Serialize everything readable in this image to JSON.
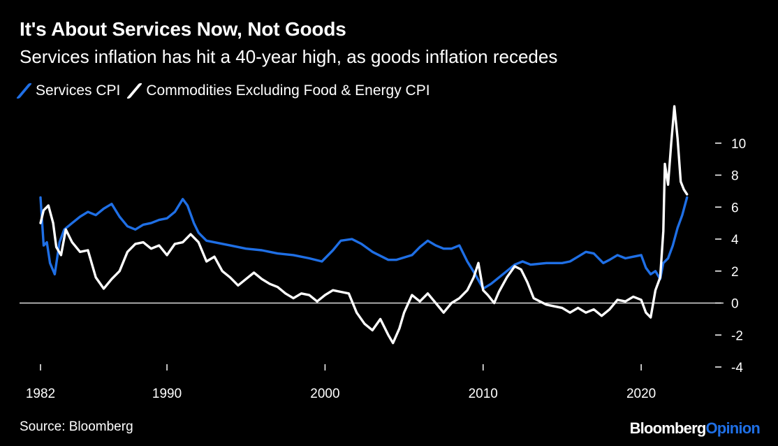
{
  "title": "It's About Services Now, Not Goods",
  "subtitle": "Services inflation has hit a 40-year high, as goods inflation recedes",
  "legend": [
    {
      "label": "Services CPI",
      "color": "#1f6fe5"
    },
    {
      "label": "Commodities Excluding Food & Energy CPI",
      "color": "#ffffff"
    }
  ],
  "source": "Source: Bloomberg",
  "brand": {
    "part1": "Bloomberg",
    "part2": "Opinion"
  },
  "chart_data": {
    "type": "line",
    "title": "It's About Services Now, Not Goods",
    "subtitle": "Services inflation has hit a 40-year high, as goods inflation recedes",
    "xlabel": "",
    "ylabel": "",
    "xlim": [
      1982,
      2023
    ],
    "ylim": [
      -4,
      12
    ],
    "x_ticks": [
      "1982",
      "1990",
      "2000",
      "2010",
      "2020"
    ],
    "x_tick_values": [
      1982,
      1990,
      2000,
      2010,
      2020
    ],
    "y_ticks": [
      "10",
      "8",
      "6",
      "4",
      "2",
      "0",
      "-2",
      "-4"
    ],
    "y_tick_values": [
      10,
      8,
      6,
      4,
      2,
      0,
      -2,
      -4
    ],
    "y_axis_side": "right",
    "zero_line": true,
    "legend_position": "top-left",
    "series": [
      {
        "name": "Services CPI",
        "color": "#1f6fe5",
        "points": [
          [
            1982.0,
            6.6
          ],
          [
            1982.2,
            3.6
          ],
          [
            1982.4,
            3.8
          ],
          [
            1982.6,
            2.5
          ],
          [
            1982.9,
            1.8
          ],
          [
            1983.2,
            3.8
          ],
          [
            1983.5,
            4.6
          ],
          [
            1984.0,
            5.0
          ],
          [
            1984.5,
            5.4
          ],
          [
            1985.0,
            5.7
          ],
          [
            1985.5,
            5.5
          ],
          [
            1986.0,
            5.9
          ],
          [
            1986.5,
            6.2
          ],
          [
            1987.0,
            5.4
          ],
          [
            1987.5,
            4.8
          ],
          [
            1988.0,
            4.6
          ],
          [
            1988.5,
            4.9
          ],
          [
            1989.0,
            5.0
          ],
          [
            1989.5,
            5.2
          ],
          [
            1990.0,
            5.3
          ],
          [
            1990.5,
            5.7
          ],
          [
            1991.0,
            6.5
          ],
          [
            1991.3,
            6.1
          ],
          [
            1991.7,
            5.0
          ],
          [
            1992.0,
            4.4
          ],
          [
            1992.5,
            3.9
          ],
          [
            1993.0,
            3.8
          ],
          [
            1994.0,
            3.6
          ],
          [
            1995.0,
            3.4
          ],
          [
            1996.0,
            3.3
          ],
          [
            1997.0,
            3.1
          ],
          [
            1998.0,
            3.0
          ],
          [
            1999.0,
            2.8
          ],
          [
            1999.8,
            2.6
          ],
          [
            2000.5,
            3.3
          ],
          [
            2001.0,
            3.9
          ],
          [
            2001.7,
            4.0
          ],
          [
            2002.3,
            3.7
          ],
          [
            2003.0,
            3.2
          ],
          [
            2004.0,
            2.7
          ],
          [
            2004.5,
            2.7
          ],
          [
            2005.5,
            3.0
          ],
          [
            2006.0,
            3.5
          ],
          [
            2006.5,
            3.9
          ],
          [
            2007.0,
            3.6
          ],
          [
            2007.5,
            3.4
          ],
          [
            2008.0,
            3.4
          ],
          [
            2008.5,
            3.6
          ],
          [
            2009.0,
            2.6
          ],
          [
            2009.5,
            1.8
          ],
          [
            2010.0,
            0.9
          ],
          [
            2010.5,
            1.2
          ],
          [
            2011.0,
            1.6
          ],
          [
            2011.5,
            2.0
          ],
          [
            2012.0,
            2.4
          ],
          [
            2012.5,
            2.6
          ],
          [
            2013.0,
            2.4
          ],
          [
            2014.0,
            2.5
          ],
          [
            2015.0,
            2.5
          ],
          [
            2015.5,
            2.6
          ],
          [
            2016.0,
            2.9
          ],
          [
            2016.5,
            3.2
          ],
          [
            2017.0,
            3.1
          ],
          [
            2017.6,
            2.5
          ],
          [
            2018.0,
            2.7
          ],
          [
            2018.5,
            3.0
          ],
          [
            2019.0,
            2.8
          ],
          [
            2019.5,
            2.9
          ],
          [
            2020.0,
            3.0
          ],
          [
            2020.3,
            2.2
          ],
          [
            2020.6,
            1.8
          ],
          [
            2020.9,
            2.0
          ],
          [
            2021.2,
            1.5
          ],
          [
            2021.4,
            2.5
          ],
          [
            2021.7,
            2.8
          ],
          [
            2022.0,
            3.6
          ],
          [
            2022.3,
            4.7
          ],
          [
            2022.6,
            5.5
          ],
          [
            2022.9,
            6.6
          ]
        ]
      },
      {
        "name": "Commodities Excluding Food & Energy CPI",
        "color": "#ffffff",
        "points": [
          [
            1982.0,
            5.0
          ],
          [
            1982.2,
            5.8
          ],
          [
            1982.5,
            6.1
          ],
          [
            1982.8,
            5.0
          ],
          [
            1983.0,
            3.5
          ],
          [
            1983.3,
            3.0
          ],
          [
            1983.6,
            4.6
          ],
          [
            1984.0,
            3.8
          ],
          [
            1984.5,
            3.2
          ],
          [
            1985.0,
            3.3
          ],
          [
            1985.5,
            1.6
          ],
          [
            1986.0,
            0.9
          ],
          [
            1986.5,
            1.5
          ],
          [
            1987.0,
            2.0
          ],
          [
            1987.5,
            3.2
          ],
          [
            1988.0,
            3.7
          ],
          [
            1988.5,
            3.8
          ],
          [
            1989.0,
            3.4
          ],
          [
            1989.5,
            3.6
          ],
          [
            1990.0,
            3.0
          ],
          [
            1990.5,
            3.7
          ],
          [
            1991.0,
            3.8
          ],
          [
            1991.5,
            4.3
          ],
          [
            1992.0,
            3.8
          ],
          [
            1992.5,
            2.6
          ],
          [
            1993.0,
            2.9
          ],
          [
            1993.5,
            2.0
          ],
          [
            1994.0,
            1.6
          ],
          [
            1994.5,
            1.1
          ],
          [
            1995.0,
            1.5
          ],
          [
            1995.5,
            1.9
          ],
          [
            1996.0,
            1.5
          ],
          [
            1996.5,
            1.2
          ],
          [
            1997.0,
            1.0
          ],
          [
            1997.5,
            0.6
          ],
          [
            1998.0,
            0.3
          ],
          [
            1998.5,
            0.6
          ],
          [
            1999.0,
            0.5
          ],
          [
            1999.5,
            0.1
          ],
          [
            2000.0,
            0.5
          ],
          [
            2000.5,
            0.8
          ],
          [
            2001.0,
            0.7
          ],
          [
            2001.5,
            0.6
          ],
          [
            2002.0,
            -0.6
          ],
          [
            2002.5,
            -1.3
          ],
          [
            2003.0,
            -1.7
          ],
          [
            2003.5,
            -1.0
          ],
          [
            2004.0,
            -2.0
          ],
          [
            2004.3,
            -2.5
          ],
          [
            2004.7,
            -1.6
          ],
          [
            2005.0,
            -0.6
          ],
          [
            2005.5,
            0.5
          ],
          [
            2006.0,
            0.1
          ],
          [
            2006.5,
            0.6
          ],
          [
            2007.0,
            0.0
          ],
          [
            2007.5,
            -0.6
          ],
          [
            2008.0,
            0.0
          ],
          [
            2008.5,
            0.3
          ],
          [
            2009.0,
            0.8
          ],
          [
            2009.4,
            1.6
          ],
          [
            2009.7,
            2.5
          ],
          [
            2010.0,
            0.8
          ],
          [
            2010.3,
            0.5
          ],
          [
            2010.7,
            0.0
          ],
          [
            2011.0,
            0.7
          ],
          [
            2011.5,
            1.6
          ],
          [
            2012.0,
            2.3
          ],
          [
            2012.4,
            2.1
          ],
          [
            2012.8,
            1.3
          ],
          [
            2013.2,
            0.3
          ],
          [
            2014.0,
            -0.1
          ],
          [
            2015.0,
            -0.3
          ],
          [
            2015.5,
            -0.6
          ],
          [
            2016.0,
            -0.3
          ],
          [
            2016.5,
            -0.6
          ],
          [
            2017.0,
            -0.4
          ],
          [
            2017.5,
            -0.8
          ],
          [
            2018.0,
            -0.4
          ],
          [
            2018.5,
            0.2
          ],
          [
            2019.0,
            0.1
          ],
          [
            2019.5,
            0.4
          ],
          [
            2020.0,
            0.2
          ],
          [
            2020.3,
            -0.6
          ],
          [
            2020.6,
            -0.9
          ],
          [
            2020.9,
            0.8
          ],
          [
            2021.2,
            1.6
          ],
          [
            2021.4,
            4.5
          ],
          [
            2021.5,
            8.7
          ],
          [
            2021.7,
            7.4
          ],
          [
            2021.9,
            10.0
          ],
          [
            2022.1,
            12.3
          ],
          [
            2022.3,
            10.3
          ],
          [
            2022.5,
            7.6
          ],
          [
            2022.7,
            7.1
          ],
          [
            2022.9,
            6.8
          ]
        ]
      }
    ]
  }
}
